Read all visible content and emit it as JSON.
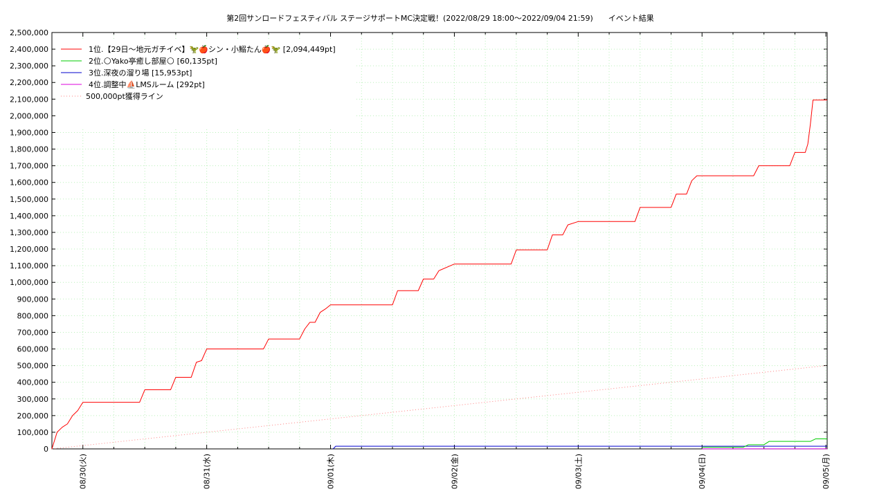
{
  "chart_data": {
    "type": "line",
    "title": "第2回サンロードフェスティバル ステージサポートMC決定戦！(2022/08/29 18:00～2022/09/04 21:59)　　イベント結果",
    "xlabel": "",
    "ylabel": "",
    "xlim": [
      "2022/08/29 18:00",
      "2022/09/05 00:15"
    ],
    "ylim": [
      0,
      2500000
    ],
    "y_ticks": [
      "0",
      "100,000",
      "200,000",
      "300,000",
      "400,000",
      "500,000",
      "600,000",
      "700,000",
      "800,000",
      "900,000",
      "1,000,000",
      "1,100,000",
      "1,200,000",
      "1,300,000",
      "1,400,000",
      "1,500,000",
      "1,600,000",
      "1,700,000",
      "1,800,000",
      "1,900,000",
      "2,000,000",
      "2,100,000",
      "2,200,000",
      "2,300,000",
      "2,400,000",
      "2,500,000"
    ],
    "x_ticks": [
      {
        "date": "2022/08/30 00:00",
        "label": "08/30(火)"
      },
      {
        "date": "2022/08/31 00:00",
        "label": "08/31(水)"
      },
      {
        "date": "2022/09/01 00:00",
        "label": "09/01(木)"
      },
      {
        "date": "2022/09/02 00:00",
        "label": "09/02(金)"
      },
      {
        "date": "2022/09/03 00:00",
        "label": "09/03(土)"
      },
      {
        "date": "2022/09/04 00:00",
        "label": "09/04(日)"
      },
      {
        "date": "2022/09/05 00:00",
        "label": "09/05(月)"
      }
    ],
    "grid": true,
    "legend_position": "top-left",
    "series": [
      {
        "name": "1位.【29日〜地元ガチイベ】🦖🍎シン・小鰯たん🍎🦖 [2,094,449pt]",
        "color": "#ff0000",
        "style": "solid",
        "points": [
          [
            "2022/08/29 18:00",
            0
          ],
          [
            "2022/08/29 19:00",
            100000
          ],
          [
            "2022/08/29 20:00",
            130000
          ],
          [
            "2022/08/29 21:00",
            150000
          ],
          [
            "2022/08/29 22:00",
            200000
          ],
          [
            "2022/08/29 23:00",
            230000
          ],
          [
            "2022/08/30 00:00",
            280000
          ],
          [
            "2022/08/30 11:00",
            280000
          ],
          [
            "2022/08/30 12:00",
            355000
          ],
          [
            "2022/08/30 17:00",
            355000
          ],
          [
            "2022/08/30 18:00",
            430000
          ],
          [
            "2022/08/30 21:00",
            430000
          ],
          [
            "2022/08/30 22:00",
            520000
          ],
          [
            "2022/08/30 23:00",
            530000
          ],
          [
            "2022/08/31 00:00",
            600000
          ],
          [
            "2022/08/31 11:00",
            600000
          ],
          [
            "2022/08/31 12:00",
            660000
          ],
          [
            "2022/08/31 18:00",
            660000
          ],
          [
            "2022/08/31 19:00",
            720000
          ],
          [
            "2022/08/31 20:00",
            760000
          ],
          [
            "2022/08/31 21:00",
            760000
          ],
          [
            "2022/08/31 22:00",
            820000
          ],
          [
            "2022/08/31 23:00",
            840000
          ],
          [
            "2022/09/01 00:00",
            865000
          ],
          [
            "2022/09/01 12:00",
            865000
          ],
          [
            "2022/09/01 13:00",
            950000
          ],
          [
            "2022/09/01 17:00",
            950000
          ],
          [
            "2022/09/01 18:00",
            1020000
          ],
          [
            "2022/09/01 20:00",
            1020000
          ],
          [
            "2022/09/01 21:00",
            1070000
          ],
          [
            "2022/09/02 00:00",
            1110000
          ],
          [
            "2022/09/02 11:00",
            1110000
          ],
          [
            "2022/09/02 12:00",
            1195000
          ],
          [
            "2022/09/02 18:00",
            1195000
          ],
          [
            "2022/09/02 19:00",
            1285000
          ],
          [
            "2022/09/02 21:00",
            1285000
          ],
          [
            "2022/09/02 22:00",
            1345000
          ],
          [
            "2022/09/03 00:00",
            1365000
          ],
          [
            "2022/09/03 11:00",
            1365000
          ],
          [
            "2022/09/03 12:00",
            1450000
          ],
          [
            "2022/09/03 18:00",
            1450000
          ],
          [
            "2022/09/03 19:00",
            1530000
          ],
          [
            "2022/09/03 21:00",
            1530000
          ],
          [
            "2022/09/03 22:00",
            1610000
          ],
          [
            "2022/09/03 23:00",
            1640000
          ],
          [
            "2022/09/04 10:00",
            1640000
          ],
          [
            "2022/09/04 11:00",
            1700000
          ],
          [
            "2022/09/04 17:00",
            1700000
          ],
          [
            "2022/09/04 18:00",
            1780000
          ],
          [
            "2022/09/04 20:00",
            1780000
          ],
          [
            "2022/09/04 20:30",
            1830000
          ],
          [
            "2022/09/04 21:00",
            1950000
          ],
          [
            "2022/09/04 21:30",
            2094449
          ],
          [
            "2022/09/05 00:15",
            2094449
          ]
        ]
      },
      {
        "name": "2位.🌕Yako亭癒し部屋🌕 [60,135pt]",
        "color": "#00cc00",
        "style": "solid",
        "points": [
          [
            "2022/09/04 00:00",
            10000
          ],
          [
            "2022/09/04 08:00",
            10000
          ],
          [
            "2022/09/04 09:00",
            25000
          ],
          [
            "2022/09/04 12:00",
            25000
          ],
          [
            "2022/09/04 13:00",
            45000
          ],
          [
            "2022/09/04 21:00",
            45000
          ],
          [
            "2022/09/04 22:00",
            60135
          ],
          [
            "2022/09/05 00:15",
            60135
          ]
        ]
      },
      {
        "name": "3位.深夜の溜り場 [15,953pt]",
        "color": "#0000cc",
        "style": "solid",
        "points": [
          [
            "2022/09/01 00:30",
            0
          ],
          [
            "2022/09/01 01:00",
            15953
          ],
          [
            "2022/09/05 00:15",
            15953
          ]
        ]
      },
      {
        "name": "4位.調整中⛵LMSルーム [292pt]",
        "color": "#dd00dd",
        "style": "solid",
        "points": [
          [
            "2022/09/04 00:00",
            292
          ],
          [
            "2022/09/05 00:15",
            292
          ]
        ]
      },
      {
        "name": "500,000pt獲得ライン",
        "color": "#ff8080",
        "style": "dotted",
        "points": [
          [
            "2022/08/29 18:00",
            0
          ],
          [
            "2022/09/05 00:00",
            500000
          ]
        ]
      }
    ]
  }
}
